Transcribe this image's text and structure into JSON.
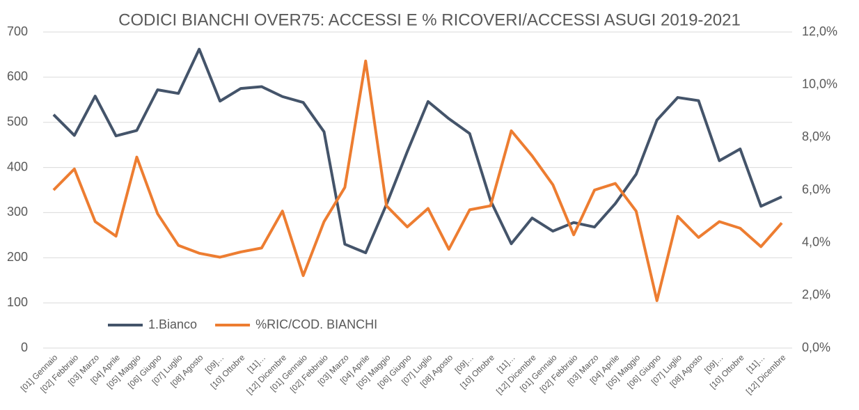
{
  "chart_data": {
    "type": "line",
    "title": "CODICI BIANCHI OVER75: ACCESSI E % RICOVERI/ACCESSI ASUGI 2019-2021",
    "categories": [
      "[01] Gennaio",
      "[02] Febbraio",
      "[03] Marzo",
      "[04] Aprile",
      "[05] Maggio",
      "[06] Giugno",
      "[07] Luglio",
      "[08] Agosto",
      "[09]…",
      "[10] Ottobre",
      "[11]…",
      "[12] Dicembre",
      "[01] Gennaio",
      "[02] Febbraio",
      "[03] Marzo",
      "[04] Aprile",
      "[05] Maggio",
      "[06] Giugno",
      "[07] Luglio",
      "[08] Agosto",
      "[09]…",
      "[10] Ottobre",
      "[11]…",
      "[12] Dicembre",
      "[01] Gennaio",
      "[02] Febbraio",
      "[03] Marzo",
      "[04] Aprile",
      "[05] Maggio",
      "[06] Giugno",
      "[07] Luglio",
      "[08] Agosto",
      "[09]…",
      "[10] Ottobre",
      "[11]…",
      "[12] Dicembre"
    ],
    "series": [
      {
        "name": "1.Bianco",
        "color": "#44546a",
        "axis": "y",
        "values": [
          517,
          471,
          558,
          470,
          482,
          572,
          564,
          662,
          547,
          575,
          579,
          557,
          544,
          479,
          230,
          211,
          318,
          435,
          546,
          508,
          475,
          327,
          231,
          288,
          259,
          278,
          268,
          320,
          385,
          505,
          555,
          548,
          415,
          441,
          314,
          335
        ]
      },
      {
        "name": "%RIC/COD. BIANCHI",
        "color": "#ed7d31",
        "axis": "y2",
        "values": [
          6.0,
          6.8,
          4.8,
          4.25,
          7.25,
          5.1,
          3.9,
          3.6,
          3.45,
          3.65,
          3.8,
          5.2,
          2.75,
          4.8,
          6.1,
          10.9,
          5.4,
          4.6,
          5.3,
          3.75,
          5.25,
          5.4,
          8.25,
          7.3,
          6.2,
          4.3,
          6.0,
          6.25,
          5.2,
          1.8,
          5.0,
          4.2,
          4.8,
          4.55,
          3.85,
          4.75
        ]
      }
    ],
    "ylim": [
      0,
      700
    ],
    "yticks": [
      0,
      100,
      200,
      300,
      400,
      500,
      600,
      700
    ],
    "y2lim": [
      0,
      12
    ],
    "y2ticks": [
      {
        "value": 0,
        "label": "0,0%"
      },
      {
        "value": 2,
        "label": "2,0%"
      },
      {
        "value": 4,
        "label": "4,0%"
      },
      {
        "value": 6,
        "label": "6,0%"
      },
      {
        "value": 8,
        "label": "8,0%"
      },
      {
        "value": 10,
        "label": "10,0%"
      },
      {
        "value": 12,
        "label": "12,0%"
      }
    ],
    "grid": true,
    "legend": "lower left"
  }
}
